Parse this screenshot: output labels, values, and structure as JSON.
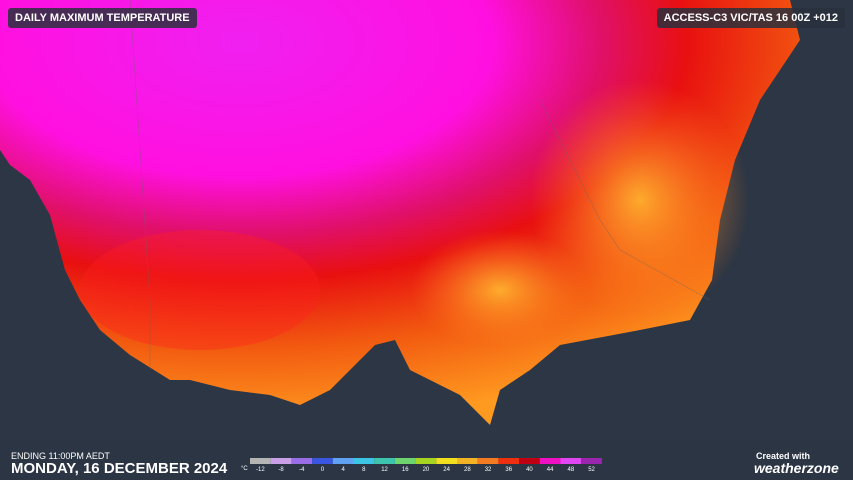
{
  "header": {
    "title": "DAILY MAXIMUM TEMPERATURE",
    "model": "ACCESS-C3 VIC/TAS 16 00Z +012"
  },
  "footer": {
    "ending": "ENDING 11:00PM AEDT",
    "date": "MONDAY, 16 DECEMBER 2024"
  },
  "legend": {
    "unit": "°C",
    "items": [
      {
        "value": -12,
        "color": "#b4b4b4"
      },
      {
        "value": -8,
        "color": "#c9a0e8"
      },
      {
        "value": -4,
        "color": "#9a6ee6"
      },
      {
        "value": 0,
        "color": "#3a55e0"
      },
      {
        "value": 4,
        "color": "#5fa2f2"
      },
      {
        "value": 8,
        "color": "#3cc4e4"
      },
      {
        "value": 12,
        "color": "#3cc4ae"
      },
      {
        "value": 16,
        "color": "#6ed46e"
      },
      {
        "value": 20,
        "color": "#a6d420"
      },
      {
        "value": 24,
        "color": "#f2e020"
      },
      {
        "value": 28,
        "color": "#f2b424"
      },
      {
        "value": 32,
        "color": "#f27a20"
      },
      {
        "value": 36,
        "color": "#ee3010"
      },
      {
        "value": 40,
        "color": "#c00012"
      },
      {
        "value": 44,
        "color": "#f010c4"
      },
      {
        "value": 48,
        "color": "#e046f2"
      },
      {
        "value": 52,
        "color": "#9a26b0"
      }
    ]
  },
  "brand": {
    "created": "Created with",
    "name": "weatherzone"
  }
}
